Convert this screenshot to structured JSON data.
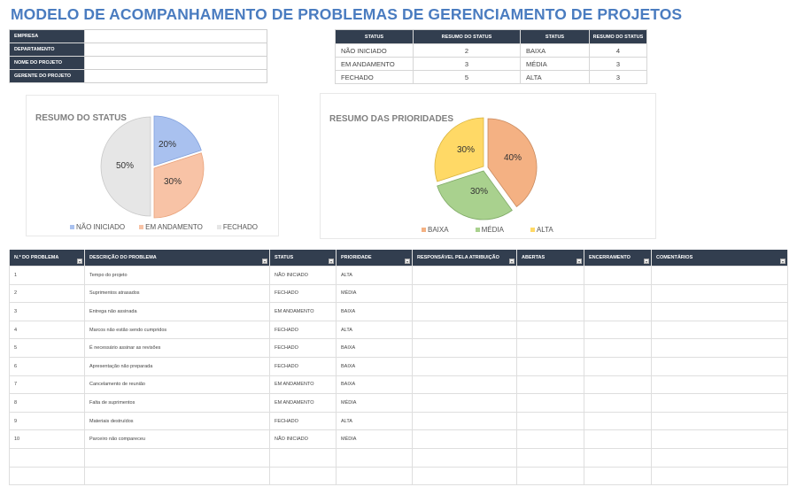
{
  "title": "MODELO DE ACOMPANHAMENTO DE PROBLEMAS DE GERENCIAMENTO DE PROJETOS",
  "info_fields": [
    {
      "label": "EMPRESA",
      "value": ""
    },
    {
      "label": "DEPARTAMENTO",
      "value": ""
    },
    {
      "label": "NOME DO PROJETO",
      "value": ""
    },
    {
      "label": "GERENTE DO PROJETO",
      "value": ""
    }
  ],
  "summary": {
    "headers": [
      "STATUS",
      "RESUMO DO STATUS",
      "STATUS",
      "RESUMO DO STATUS"
    ],
    "rows": [
      {
        "status": "NÃO INICIADO",
        "status_count": "2",
        "priority": "BAIXA",
        "priority_count": "4"
      },
      {
        "status": "EM ANDAMENTO",
        "status_count": "3",
        "priority": "MÉDIA",
        "priority_count": "3"
      },
      {
        "status": "FECHADO",
        "status_count": "5",
        "priority": "ALTA",
        "priority_count": "3"
      }
    ]
  },
  "chart_data": [
    {
      "type": "pie",
      "title": "RESUMO DO STATUS",
      "categories": [
        "NÃO INICIADO",
        "EM ANDAMENTO",
        "FECHADO"
      ],
      "values": [
        20,
        30,
        50
      ],
      "labels": [
        "20%",
        "30%",
        "50%"
      ],
      "colors": [
        "#a9c1ef",
        "#f8c3a6",
        "#e6e6e6"
      ],
      "legend_position": "bottom"
    },
    {
      "type": "pie",
      "title": "RESUMO DAS PRIORIDADES",
      "categories": [
        "BAIXA",
        "MÉDIA",
        "ALTA"
      ],
      "values": [
        40,
        30,
        30
      ],
      "labels": [
        "40%",
        "30%",
        "30%"
      ],
      "colors": [
        "#f4b183",
        "#a9d18e",
        "#ffd966"
      ],
      "legend_position": "bottom"
    }
  ],
  "issues": {
    "headers": [
      "N.º DO PROBLEMA",
      "DESCRIÇÃO DO PROBLEMA",
      "STATUS",
      "PRIORIDADE",
      "RESPONSÁVEL PELA ATRIBUIÇÃO",
      "ABERTAS",
      "ENCERRAMENTO",
      "COMENTÁRIOS"
    ],
    "rows": [
      [
        "1",
        "Tempo do projeto",
        "NÃO INICIADO",
        "ALTA",
        "",
        "",
        "",
        ""
      ],
      [
        "2",
        "Suprimentos atrasados",
        "FECHADO",
        "MÉDIA",
        "",
        "",
        "",
        ""
      ],
      [
        "3",
        "Entrega não assinada",
        "EM ANDAMENTO",
        "BAIXA",
        "",
        "",
        "",
        ""
      ],
      [
        "4",
        "Marcos não estão sendo cumpridos",
        "FECHADO",
        "ALTA",
        "",
        "",
        "",
        ""
      ],
      [
        "5",
        "É necessário assinar as revisões",
        "FECHADO",
        "BAIXA",
        "",
        "",
        "",
        ""
      ],
      [
        "6",
        "Apresentação não preparada",
        "FECHADO",
        "BAIXA",
        "",
        "",
        "",
        ""
      ],
      [
        "7",
        "Cancelamento de reunião",
        "EM ANDAMENTO",
        "BAIXA",
        "",
        "",
        "",
        ""
      ],
      [
        "8",
        "Falta de suprimentos",
        "EM ANDAMENTO",
        "MÉDIA",
        "",
        "",
        "",
        ""
      ],
      [
        "9",
        "Materiais destruídos",
        "FECHADO",
        "ALTA",
        "",
        "",
        "",
        ""
      ],
      [
        "10",
        "Parceiro não compareceu",
        "NÃO INICIADO",
        "MÉDIA",
        "",
        "",
        "",
        ""
      ],
      [
        "",
        "",
        "",
        "",
        "",
        "",
        "",
        ""
      ],
      [
        "",
        "",
        "",
        "",
        "",
        "",
        "",
        ""
      ]
    ]
  }
}
